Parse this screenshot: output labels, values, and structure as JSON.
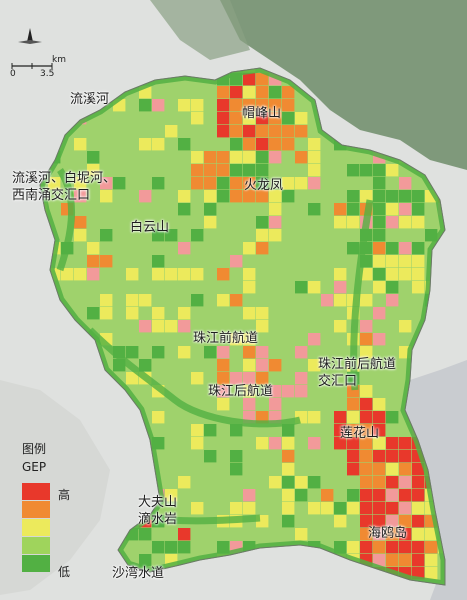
{
  "scale_bar": {
    "unit": "km",
    "start": "0",
    "end": "3.5"
  },
  "legend": {
    "title": "图例",
    "subtitle": "GEP",
    "high_label": "高",
    "low_label": "低",
    "colors": [
      "#e8382b",
      "#f08a32",
      "#ecea5c",
      "#9fd45c",
      "#52b043"
    ]
  },
  "places": [
    {
      "id": "liuxihe",
      "text": "流溪河"
    },
    {
      "id": "maofengshan",
      "text": "帽峰山"
    },
    {
      "id": "confluence",
      "text": "流溪河、白坭河、\n西南涌交汇口"
    },
    {
      "id": "huolongfeng",
      "text": "火龙凤"
    },
    {
      "id": "baiyunshan",
      "text": "白云山"
    },
    {
      "id": "front-channel",
      "text": "珠江前航道"
    },
    {
      "id": "front-back-junction",
      "text": "珠江前后航道\n交汇口"
    },
    {
      "id": "back-channel",
      "text": "珠江后航道"
    },
    {
      "id": "lianhuashan",
      "text": "莲花山"
    },
    {
      "id": "dafushan",
      "text": "大夫山\n滴水岩"
    },
    {
      "id": "haioudao",
      "text": "海鸥岛"
    },
    {
      "id": "shawan",
      "text": "沙湾水道"
    }
  ],
  "map_colors": {
    "basemap": "#dfe1df",
    "forest": "#6f8c6a",
    "water": "#c9ccd0",
    "cell_base": "#9fd26c",
    "low": "#52b043",
    "mid_high": "#f08a32",
    "high": "#e8382b",
    "moderate": "#ecea5c",
    "pink": "#f29a9a"
  }
}
